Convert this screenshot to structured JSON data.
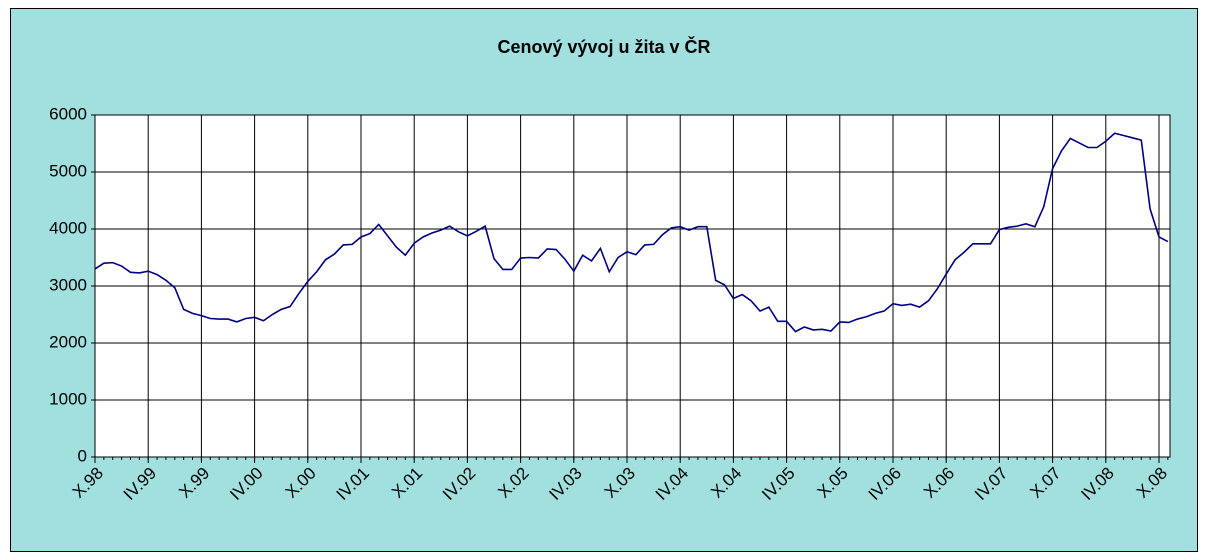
{
  "chart_data": {
    "type": "line",
    "title": "Cenový vývoj u žita v ČR",
    "categories": [
      "X.98",
      null,
      null,
      null,
      null,
      null,
      "IV.99",
      null,
      null,
      null,
      null,
      null,
      "X.99",
      null,
      null,
      null,
      null,
      null,
      "IV.00",
      null,
      null,
      null,
      null,
      null,
      "X.00",
      null,
      null,
      null,
      null,
      null,
      "IV.01",
      null,
      null,
      null,
      null,
      null,
      "X.01",
      null,
      null,
      null,
      null,
      null,
      "IV.02",
      null,
      null,
      null,
      null,
      null,
      "X.02",
      null,
      null,
      null,
      null,
      null,
      "IV.03",
      null,
      null,
      null,
      null,
      null,
      "X.03",
      null,
      null,
      null,
      null,
      null,
      "IV.04",
      null,
      null,
      null,
      null,
      null,
      "X.04",
      null,
      null,
      null,
      null,
      null,
      "IV.05",
      null,
      null,
      null,
      null,
      null,
      "X.05",
      null,
      null,
      null,
      null,
      null,
      "IV.06",
      null,
      null,
      null,
      null,
      null,
      "X.06",
      null,
      null,
      null,
      null,
      null,
      "IV.07",
      null,
      null,
      null,
      null,
      null,
      "X.07",
      null,
      null,
      null,
      null,
      null,
      "IV.08",
      null,
      null,
      null,
      null,
      null,
      "X.08",
      null
    ],
    "series": [
      {
        "color": "#000080",
        "values": [
          3300,
          3400,
          3410,
          3350,
          3240,
          3230,
          3260,
          3200,
          3100,
          2970,
          2590,
          2520,
          2480,
          2430,
          2420,
          2420,
          2370,
          2430,
          2450,
          2390,
          2500,
          2590,
          2640,
          2870,
          3080,
          3250,
          3460,
          3560,
          3720,
          3730,
          3860,
          3920,
          4080,
          3880,
          3680,
          3540,
          3750,
          3860,
          3930,
          3980,
          4050,
          3950,
          3880,
          3960,
          4050,
          3480,
          3290,
          3290,
          3490,
          3500,
          3490,
          3650,
          3640,
          3470,
          3260,
          3540,
          3440,
          3660,
          3250,
          3500,
          3600,
          3550,
          3720,
          3730,
          3900,
          4020,
          4040,
          3980,
          4040,
          4040,
          3100,
          3020,
          2780,
          2850,
          2740,
          2560,
          2630,
          2380,
          2380,
          2200,
          2280,
          2230,
          2240,
          2210,
          2370,
          2360,
          2420,
          2460,
          2520,
          2560,
          2690,
          2660,
          2680,
          2630,
          2740,
          2950,
          3210,
          3460,
          3590,
          3740,
          3740,
          3740,
          3990,
          4030,
          4050,
          4090,
          4040,
          4390,
          5060,
          5370,
          5590,
          5510,
          5430,
          5430,
          5540,
          5680,
          5640,
          5600,
          5560,
          4350,
          3860,
          3780
        ]
      }
    ],
    "ylim": [
      0,
      6000
    ],
    "yticks": [
      0,
      1000,
      2000,
      3000,
      4000,
      5000,
      6000
    ],
    "grid": true
  }
}
